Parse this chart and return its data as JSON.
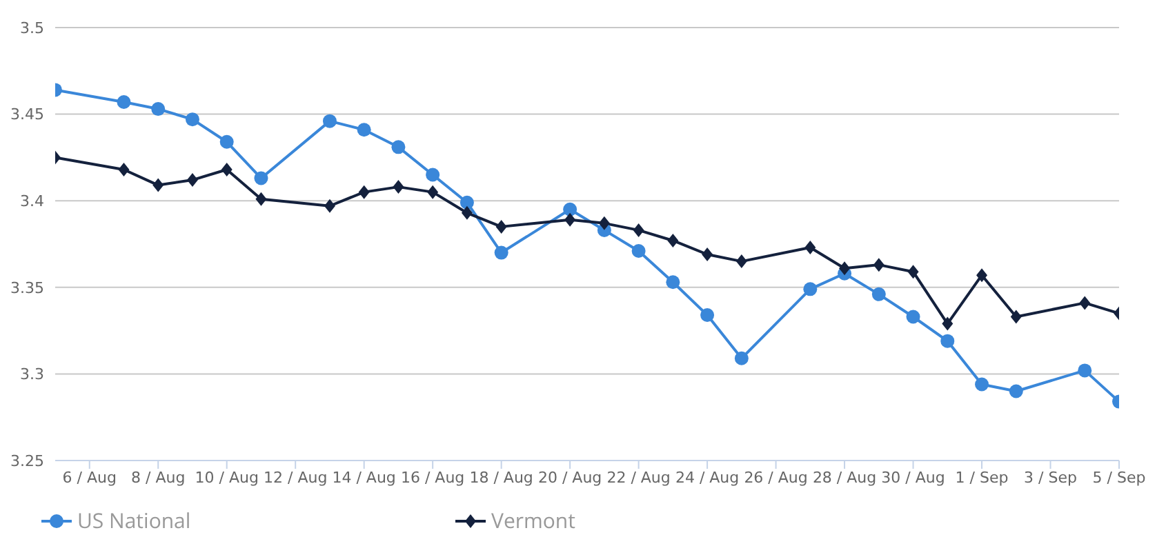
{
  "chart_data": {
    "type": "line",
    "x": [
      "--08-05",
      "--08-07",
      "--08-08",
      "--08-09",
      "--08-10",
      "--08-11",
      "--08-13",
      "--08-14",
      "--08-15",
      "--08-16",
      "--08-17",
      "--08-18",
      "--08-20",
      "--08-21",
      "--08-22",
      "--08-23",
      "--08-24",
      "--08-25",
      "--08-27",
      "--08-28",
      "--08-29",
      "--08-30",
      "--08-31",
      "--09-01",
      "--09-02",
      "--09-04",
      "--09-05"
    ],
    "series": [
      {
        "name": "US National",
        "color": "#3a87d9",
        "marker": "circle",
        "values": [
          3.464,
          3.457,
          3.453,
          3.447,
          3.434,
          3.413,
          3.446,
          3.441,
          3.431,
          3.415,
          3.399,
          3.37,
          3.395,
          3.383,
          3.371,
          3.353,
          3.334,
          3.309,
          3.349,
          3.358,
          3.346,
          3.333,
          3.319,
          3.294,
          3.29,
          3.302,
          3.284
        ]
      },
      {
        "name": "Vermont",
        "color": "#14213d",
        "marker": "diamond",
        "values": [
          3.425,
          3.418,
          3.409,
          3.412,
          3.418,
          3.401,
          3.397,
          3.405,
          3.408,
          3.405,
          3.393,
          3.385,
          3.389,
          3.387,
          3.383,
          3.377,
          3.369,
          3.365,
          3.373,
          3.361,
          3.363,
          3.359,
          3.329,
          3.357,
          3.333,
          3.341,
          3.335
        ]
      }
    ],
    "xlim": [
      "--08-05",
      "--09-05"
    ],
    "xticks": [
      {
        "value": "--08-06",
        "label": "6 / Aug"
      },
      {
        "value": "--08-08",
        "label": "8 / Aug"
      },
      {
        "value": "--08-10",
        "label": "10 / Aug"
      },
      {
        "value": "--08-12",
        "label": "12 / Aug"
      },
      {
        "value": "--08-14",
        "label": "14 / Aug"
      },
      {
        "value": "--08-16",
        "label": "16 / Aug"
      },
      {
        "value": "--08-18",
        "label": "18 / Aug"
      },
      {
        "value": "--08-20",
        "label": "20 / Aug"
      },
      {
        "value": "--08-22",
        "label": "22 / Aug"
      },
      {
        "value": "--08-24",
        "label": "24 / Aug"
      },
      {
        "value": "--08-26",
        "label": "26 / Aug"
      },
      {
        "value": "--08-28",
        "label": "28 / Aug"
      },
      {
        "value": "--08-30",
        "label": "30 / Aug"
      },
      {
        "value": "--09-01",
        "label": "1 / Sep"
      },
      {
        "value": "--09-03",
        "label": "3 / Sep"
      },
      {
        "value": "--09-05",
        "label": "5 / Sep"
      }
    ],
    "ylim": [
      3.25,
      3.5
    ],
    "yticks": [
      3.25,
      3.3,
      3.35,
      3.4,
      3.45,
      3.5
    ],
    "grid": "y",
    "legend": "bottom left",
    "line_style": "solid"
  }
}
